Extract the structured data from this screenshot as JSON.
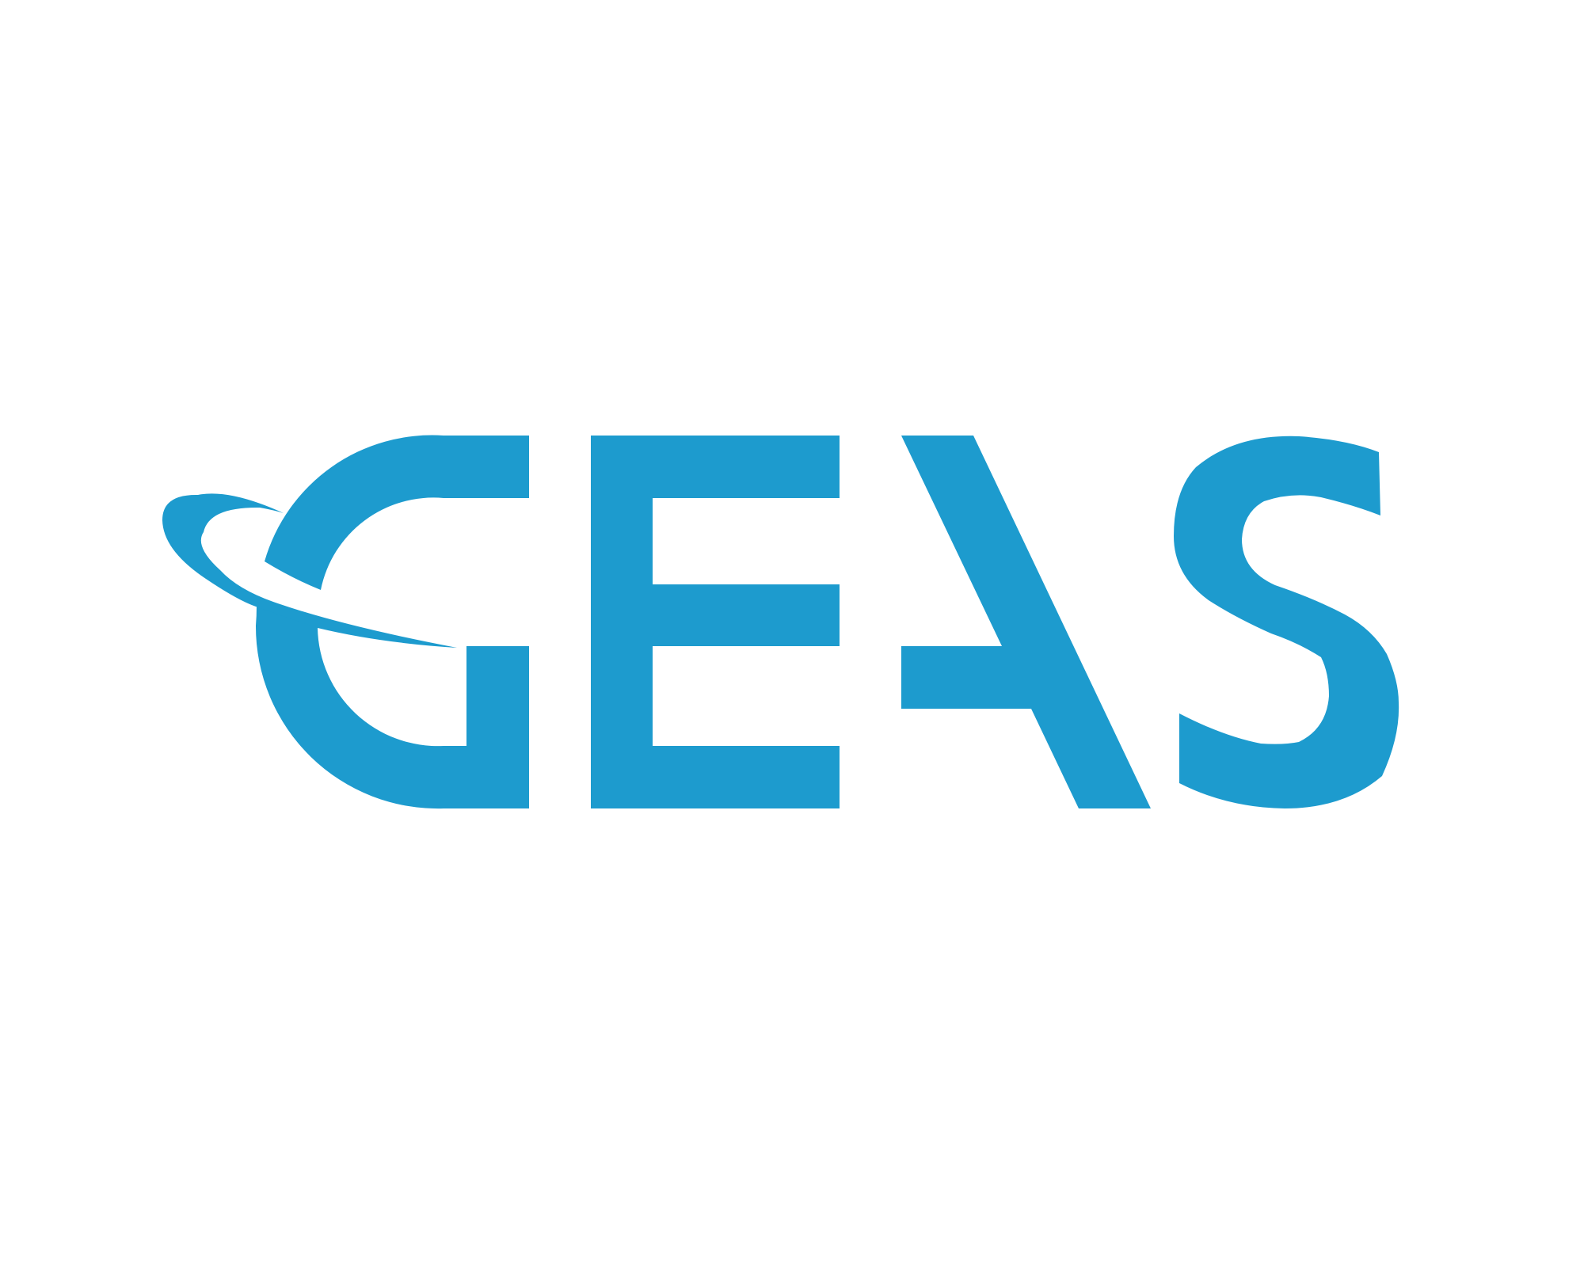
{
  "logo": {
    "wordmark": "GEAS",
    "brand_color": "#1D9BCE",
    "background_color": "#FFFFFF"
  }
}
